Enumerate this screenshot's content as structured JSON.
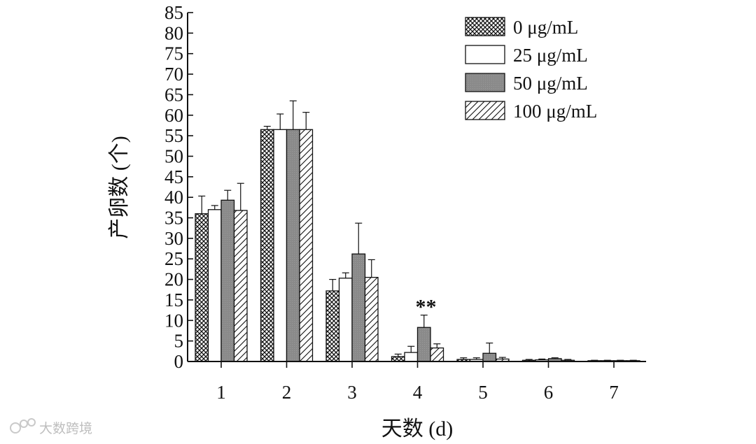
{
  "chart_data": {
    "type": "bar",
    "title": "",
    "xlabel": "天数 (d)",
    "ylabel": "产卵数 (个)",
    "ylim": [
      0,
      85
    ],
    "yticks": [
      0,
      5,
      10,
      15,
      20,
      25,
      30,
      35,
      40,
      45,
      50,
      55,
      60,
      65,
      70,
      75,
      80,
      85
    ],
    "categories": [
      "1",
      "2",
      "3",
      "4",
      "5",
      "6",
      "7"
    ],
    "grid": false,
    "legend_position": "top-right",
    "series": [
      {
        "name": "0 μg/mL",
        "pattern": "crosshatch",
        "values": [
          36,
          56.5,
          17.2,
          1.2,
          0.5,
          0.3,
          0.2
        ],
        "errors": [
          4.3,
          0.8,
          2.8,
          0.6,
          0.4,
          0.2,
          0.1
        ]
      },
      {
        "name": "25 μg/mL",
        "pattern": "white",
        "values": [
          37,
          56.5,
          20.3,
          2.2,
          0.5,
          0.4,
          0.2
        ],
        "errors": [
          1.0,
          3.8,
          1.3,
          1.5,
          0.4,
          0.2,
          0.1
        ]
      },
      {
        "name": "50 μg/mL",
        "pattern": "gray",
        "values": [
          39.3,
          56.5,
          26.2,
          8.3,
          2.0,
          0.7,
          0.2
        ],
        "errors": [
          2.4,
          7.0,
          7.5,
          3.0,
          2.5,
          0.2,
          0.1
        ]
      },
      {
        "name": "100 μg/mL",
        "pattern": "diagonal",
        "values": [
          36.8,
          56.5,
          20.5,
          3.3,
          0.6,
          0.3,
          0.2
        ],
        "errors": [
          6.6,
          4.2,
          4.3,
          1.0,
          0.4,
          0.2,
          0.1
        ]
      }
    ],
    "annotations": [
      {
        "text": "**",
        "category": "4"
      }
    ]
  },
  "colors": {
    "bar_outline": "#111111",
    "gray_fill": "#8c8c8c",
    "hatch": "#111111"
  },
  "watermark": {
    "text": "大数跨境"
  }
}
